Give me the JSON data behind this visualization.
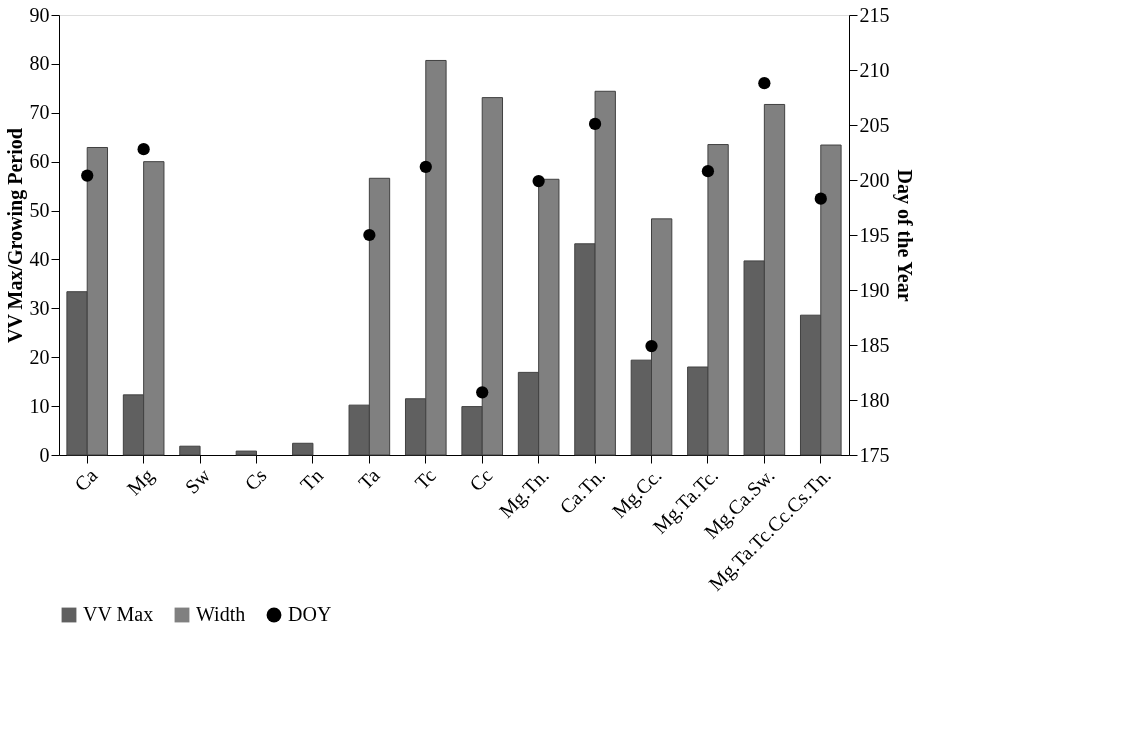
{
  "chart_data": {
    "type": "bar",
    "ylabel": "VV Max/Growing Period",
    "y2label": "Day of the Year",
    "categories": [
      "Ca",
      "Mg",
      "Sw",
      "Cs",
      "Tn",
      "Ta",
      "Tc",
      "Cc",
      "Mg.Tn.",
      "Ca.Tn.",
      "Mg.Cc.",
      "Mg.Ta.Tc.",
      "Mg.Ca.Sw.",
      "Mg.Ta.Tc.Cc.Cs.Tn."
    ],
    "series": [
      {
        "name": "VV Max",
        "color": "#606060",
        "values": [
          33.4,
          12.3,
          1.8,
          0.8,
          2.4,
          10.2,
          11.5,
          9.9,
          16.9,
          43.2,
          19.4,
          18.0,
          39.7,
          28.6
        ]
      },
      {
        "name": "Width",
        "color": "#808080",
        "values": [
          62.9,
          60.0,
          null,
          null,
          null,
          56.6,
          80.7,
          73.1,
          56.4,
          74.4,
          48.3,
          63.5,
          71.7,
          63.4
        ]
      },
      {
        "name": "DOY",
        "type": "scatter",
        "axis": "y2",
        "color": "#000000",
        "marker": "circle",
        "values": [
          200.4,
          202.8,
          null,
          null,
          null,
          195.0,
          201.2,
          180.7,
          199.9,
          205.1,
          184.9,
          200.8,
          208.8,
          198.3
        ]
      }
    ],
    "ylim": [
      0,
      90
    ],
    "yticks": [
      0,
      10,
      20,
      30,
      40,
      50,
      60,
      70,
      80,
      90
    ],
    "y2lim": [
      175,
      215
    ],
    "y2ticks": [
      175,
      180,
      185,
      190,
      195,
      200,
      205,
      210,
      215
    ],
    "grid": false,
    "legend": "bottom left"
  }
}
